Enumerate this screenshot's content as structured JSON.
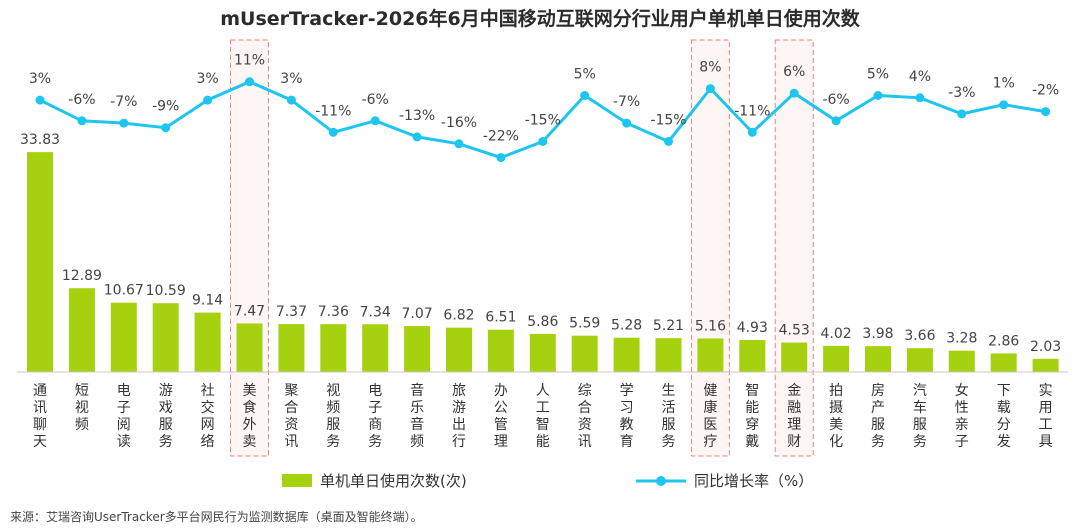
{
  "chart_data": {
    "type": "bar",
    "title": "mUserTracker-2026年6月中国移动互联网分行业用户单机单日使用次数",
    "categories": [
      "通讯聊天",
      "短视频",
      "电子阅读",
      "游戏服务",
      "社交网络",
      "美食外卖",
      "聚合资讯",
      "视频服务",
      "电子商务",
      "音乐音频",
      "旅游出行",
      "办公管理",
      "人工智能",
      "综合资讯",
      "学习教育",
      "生活服务",
      "健康医疗",
      "智能穿戴",
      "金融理财",
      "拍摄美化",
      "房产服务",
      "汽车服务",
      "女性亲子",
      "下载分发",
      "实用工具"
    ],
    "series": [
      {
        "name": "单机单日使用次数(次)",
        "type": "bar",
        "color": "#a6d10e",
        "values": [
          33.83,
          12.89,
          10.67,
          10.59,
          9.14,
          7.47,
          7.37,
          7.36,
          7.34,
          7.07,
          6.82,
          6.51,
          5.86,
          5.59,
          5.28,
          5.21,
          5.16,
          4.93,
          4.53,
          4.02,
          3.98,
          3.66,
          3.28,
          2.86,
          2.03
        ]
      },
      {
        "name": "同比增长率（%）",
        "type": "line",
        "color": "#1ec5ee",
        "values": [
          3,
          -6,
          -7,
          -9,
          3,
          11,
          3,
          -11,
          -6,
          -13,
          -16,
          -22,
          -15,
          5,
          -7,
          -15,
          8,
          -11,
          6,
          -6,
          5,
          4,
          -3,
          1,
          -2
        ],
        "labels": [
          "3%",
          "-6%",
          "-7%",
          "-9%",
          "3%",
          "11%",
          "3%",
          "-11%",
          "-6%",
          "-13%",
          "-16%",
          "-22%",
          "-15%",
          "5%",
          "-7%",
          "-15%",
          "8%",
          "-11%",
          "6%",
          "-6%",
          "5%",
          "4%",
          "-3%",
          "1%",
          "-2%"
        ]
      }
    ],
    "bar_labels": [
      "33.83",
      "12.89",
      "10.67",
      "10.59",
      "9.14",
      "7.47",
      "7.37",
      "7.36",
      "7.34",
      "7.07",
      "6.82",
      "6.51",
      "5.86",
      "5.59",
      "5.28",
      "5.21",
      "5.16",
      "4.93",
      "4.53",
      "4.02",
      "3.98",
      "3.66",
      "3.28",
      "2.86",
      "2.03"
    ],
    "highlighted_categories": [
      "美食外卖",
      "健康医疗",
      "金融理财"
    ],
    "highlight_color": "#f08080",
    "legend_position": "bottom"
  },
  "source_note": "来源：艾瑞咨询UserTracker多平台网民行为监测数据库（桌面及智能终端）。"
}
